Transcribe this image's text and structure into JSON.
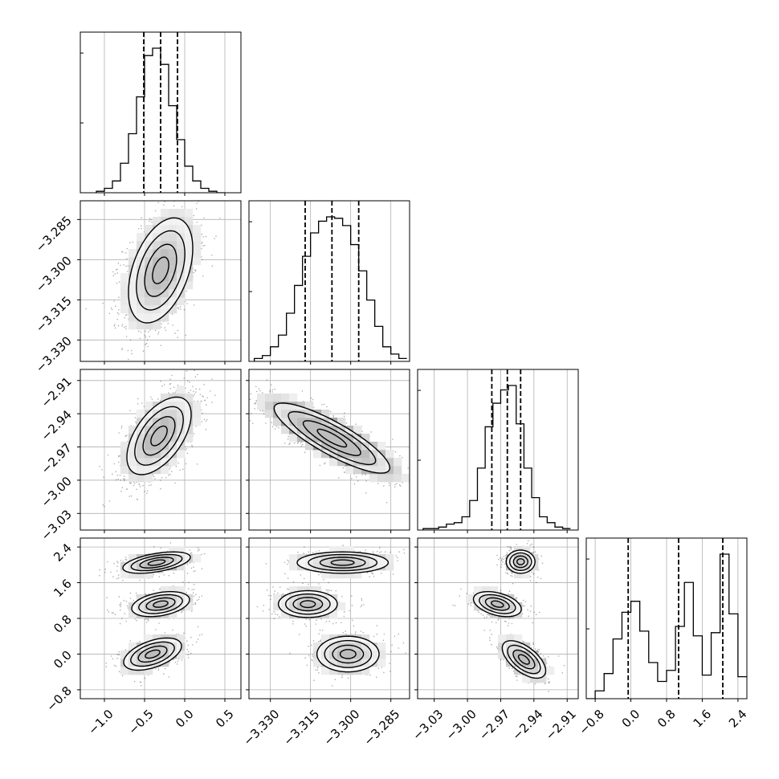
{
  "chart_data": {
    "type": "corner",
    "parameters": 4,
    "colors": {
      "line": "#000000",
      "grid": "#b0b0b0",
      "scatter": "#000000"
    },
    "grid": true,
    "quantile_lines": "dashed",
    "axes": [
      {
        "range": [
          -1.3,
          0.7
        ],
        "ticks": [
          -1.0,
          -0.5,
          0.0,
          0.5
        ],
        "tick_labels": [
          "−1.0",
          "−0.5",
          "0.0",
          "0.5"
        ]
      },
      {
        "range": [
          -3.338,
          -3.278
        ],
        "ticks": [
          -3.33,
          -3.315,
          -3.3,
          -3.285
        ],
        "tick_labels": [
          "−3.330",
          "−3.315",
          "−3.300",
          "−3.285"
        ]
      },
      {
        "range": [
          -3.045,
          -2.9
        ],
        "ticks": [
          -3.03,
          -3.0,
          -2.97,
          -2.94,
          -2.91
        ],
        "tick_labels": [
          "−3.03",
          "−3.00",
          "−2.97",
          "−2.94",
          "−2.91"
        ]
      },
      {
        "range": [
          -1.0,
          2.6
        ],
        "ticks": [
          -0.8,
          0.0,
          0.8,
          1.6,
          2.4
        ],
        "tick_labels": [
          "−0.8",
          "0.0",
          "0.8",
          "1.6",
          "2.4"
        ]
      }
    ],
    "histograms": [
      {
        "param": 0,
        "bin_edges": [
          -1.1,
          -1.0,
          -0.9,
          -0.8,
          -0.7,
          -0.6,
          -0.5,
          -0.4,
          -0.3,
          -0.2,
          -0.1,
          0.0,
          0.1,
          0.2,
          0.3,
          0.4,
          0.5
        ],
        "counts": [
          0.01,
          0.03,
          0.08,
          0.2,
          0.4,
          0.65,
          0.93,
          0.98,
          0.87,
          0.59,
          0.36,
          0.18,
          0.08,
          0.03,
          0.01,
          0.0
        ],
        "quantiles": [
          -0.51,
          -0.3,
          -0.09
        ]
      },
      {
        "param": 1,
        "bin_edges": [
          -3.336,
          -3.333,
          -3.33,
          -3.327,
          -3.324,
          -3.321,
          -3.318,
          -3.315,
          -3.312,
          -3.309,
          -3.306,
          -3.303,
          -3.3,
          -3.297,
          -3.294,
          -3.291,
          -3.288,
          -3.285,
          -3.282,
          -3.279
        ],
        "counts": [
          0.02,
          0.04,
          0.1,
          0.18,
          0.33,
          0.52,
          0.72,
          0.88,
          0.96,
          0.99,
          0.98,
          0.93,
          0.8,
          0.62,
          0.42,
          0.24,
          0.1,
          0.05,
          0.02
        ],
        "quantiles": [
          -3.317,
          -3.307,
          -3.297
        ]
      },
      {
        "param": 2,
        "bin_edges": [
          -3.04,
          -3.033,
          -3.026,
          -3.019,
          -3.012,
          -3.005,
          -2.998,
          -2.991,
          -2.984,
          -2.977,
          -2.97,
          -2.963,
          -2.956,
          -2.949,
          -2.942,
          -2.935,
          -2.928,
          -2.921,
          -2.914,
          -2.907
        ],
        "counts": [
          0.01,
          0.01,
          0.02,
          0.04,
          0.05,
          0.09,
          0.2,
          0.42,
          0.7,
          0.86,
          0.95,
          0.98,
          0.72,
          0.42,
          0.22,
          0.09,
          0.05,
          0.02,
          0.01
        ],
        "quantiles": [
          -2.978,
          -2.964,
          -2.952
        ]
      },
      {
        "param": 3,
        "bin_edges": [
          -1.0,
          -0.8,
          -0.6,
          -0.4,
          -0.2,
          0.0,
          0.2,
          0.4,
          0.6,
          0.8,
          1.0,
          1.2,
          1.4,
          1.6,
          1.8,
          2.0,
          2.2,
          2.4,
          2.6
        ],
        "counts": [
          0.0,
          0.05,
          0.16,
          0.38,
          0.55,
          0.62,
          0.43,
          0.23,
          0.11,
          0.18,
          0.46,
          0.74,
          0.4,
          0.15,
          0.42,
          0.92,
          0.54,
          0.14
        ],
        "quantiles": [
          -0.06,
          1.07,
          2.06
        ]
      }
    ],
    "contour_panels": [
      {
        "x": 0,
        "y": 1,
        "blobs": [
          {
            "center": [
              -0.3,
              -3.304
            ],
            "sx": 0.2,
            "sy": 0.0098,
            "rho": 0.42
          }
        ]
      },
      {
        "x": 0,
        "y": 2,
        "blobs": [
          {
            "center": [
              -0.32,
              -2.96
            ],
            "sx": 0.2,
            "sy": 0.0175,
            "rho": 0.55
          }
        ]
      },
      {
        "x": 1,
        "y": 2,
        "blobs": [
          {
            "center": [
              -3.307,
              -2.962
            ],
            "sx": 0.0108,
            "sy": 0.0158,
            "rho": -0.85
          }
        ]
      },
      {
        "x": 0,
        "y": 3,
        "blobs": [
          {
            "center": [
              -0.35,
              2.05
            ],
            "sx": 0.21,
            "sy": 0.12,
            "rho": 0.5,
            "weight": 0.34
          },
          {
            "center": [
              -0.3,
              1.12
            ],
            "sx": 0.18,
            "sy": 0.14,
            "rho": 0.35,
            "weight": 0.33
          },
          {
            "center": [
              -0.4,
              0.0
            ],
            "sx": 0.18,
            "sy": 0.18,
            "rho": 0.5,
            "weight": 0.33
          }
        ]
      },
      {
        "x": 1,
        "y": 3,
        "blobs": [
          {
            "center": [
              -3.303,
              2.05
            ],
            "sx": 0.0085,
            "sy": 0.12,
            "rho": 0.0,
            "weight": 0.34
          },
          {
            "center": [
              -3.316,
              1.12
            ],
            "sx": 0.0055,
            "sy": 0.15,
            "rho": 0.0,
            "weight": 0.33
          },
          {
            "center": [
              -3.301,
              0.0
            ],
            "sx": 0.0058,
            "sy": 0.2,
            "rho": 0.0,
            "weight": 0.33
          }
        ]
      },
      {
        "x": 2,
        "y": 3,
        "blobs": [
          {
            "center": [
              -2.952,
              2.07
            ],
            "sx": 0.0065,
            "sy": 0.13,
            "rho": 0.0,
            "weight": 0.34
          },
          {
            "center": [
              -2.973,
              1.12
            ],
            "sx": 0.0108,
            "sy": 0.14,
            "rho": -0.4,
            "weight": 0.33
          },
          {
            "center": [
              -2.949,
              -0.12
            ],
            "sx": 0.0098,
            "sy": 0.21,
            "rho": -0.6,
            "weight": 0.33
          }
        ]
      }
    ]
  }
}
